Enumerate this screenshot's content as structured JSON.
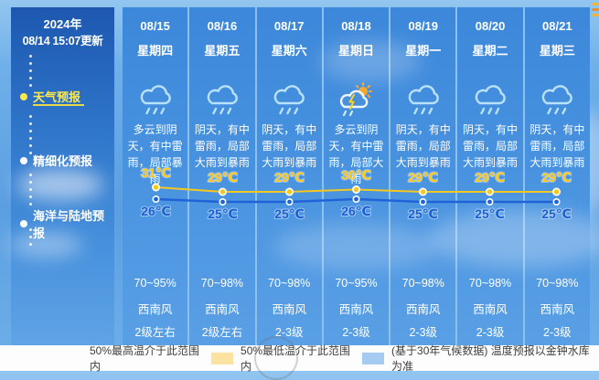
{
  "sidebar": {
    "year": "2024年",
    "updated": "08/14 15:07更新",
    "items": [
      {
        "label": "天气预报",
        "active": true
      },
      {
        "label": "精细化预报",
        "active": false
      },
      {
        "label": "海洋与陆地预报",
        "active": false
      }
    ]
  },
  "columns": [
    {
      "date": "08/15",
      "weekday": "星期四",
      "icon": "thunder-rain",
      "desc": "多云到阴天，有中雷雨，局部暴雨",
      "humidity": "70~95%",
      "wind_dir": "西南风",
      "wind_level": "2级左右"
    },
    {
      "date": "08/16",
      "weekday": "星期五",
      "icon": "thunder-rain",
      "desc": "阴天，有中雷雨，局部大雨到暴雨",
      "humidity": "70~98%",
      "wind_dir": "西南风",
      "wind_level": "2级左右"
    },
    {
      "date": "08/17",
      "weekday": "星期六",
      "icon": "thunder-rain",
      "desc": "阴天，有中雷雨，局部大雨到暴雨",
      "humidity": "70~98%",
      "wind_dir": "西南风",
      "wind_level": "2-3级"
    },
    {
      "date": "08/18",
      "weekday": "星期日",
      "icon": "sun-thunder-rain",
      "desc": "多云到阴天，有中雷雨，局部大雨",
      "humidity": "70~95%",
      "wind_dir": "西南风",
      "wind_level": "2-3级"
    },
    {
      "date": "08/19",
      "weekday": "星期一",
      "icon": "thunder-rain",
      "desc": "阴天，有中雷雨，局部大雨到暴雨",
      "humidity": "70~98%",
      "wind_dir": "西南风",
      "wind_level": "2-3级"
    },
    {
      "date": "08/20",
      "weekday": "星期二",
      "icon": "thunder-rain",
      "desc": "阴天，有中雷雨，局部大雨到暴雨",
      "humidity": "70~98%",
      "wind_dir": "西南风",
      "wind_level": "2-3级"
    },
    {
      "date": "08/21",
      "weekday": "星期三",
      "icon": "thunder-rain",
      "desc": "阴天，有中雷雨，局部大雨到暴雨",
      "humidity": "70~98%",
      "wind_dir": "西南风",
      "wind_level": "2-3级"
    }
  ],
  "chart_data": {
    "type": "line",
    "categories": [
      "08/15",
      "08/16",
      "08/17",
      "08/18",
      "08/19",
      "08/20",
      "08/21"
    ],
    "series": [
      {
        "name": "最高温",
        "values": [
          31,
          29,
          29,
          30,
          29,
          29,
          29
        ],
        "color": "#f6c71e"
      },
      {
        "name": "最低温",
        "values": [
          26,
          25,
          25,
          26,
          25,
          25,
          25
        ],
        "color": "#1e64d8"
      }
    ],
    "unit": "℃",
    "high_label_color": "#ffca18",
    "low_label_color": "#1a5fd4"
  },
  "legend": {
    "high_label": "50%最高温介于此范围内",
    "low_label": "50%最低温介于此范围内",
    "note": "(基于30年气候数据) 温度预报以金钟水库为准",
    "high_swatch_color": "#fbe2a0",
    "low_swatch_color": "#a6cbf0"
  },
  "colors": {
    "sidebar_active": "#ffe94a",
    "column_bg": "#3e8ade",
    "icon_blue": "#b9e2f8",
    "sun_orange": "#f5a623",
    "bolt_yellow": "#ffd21e"
  }
}
